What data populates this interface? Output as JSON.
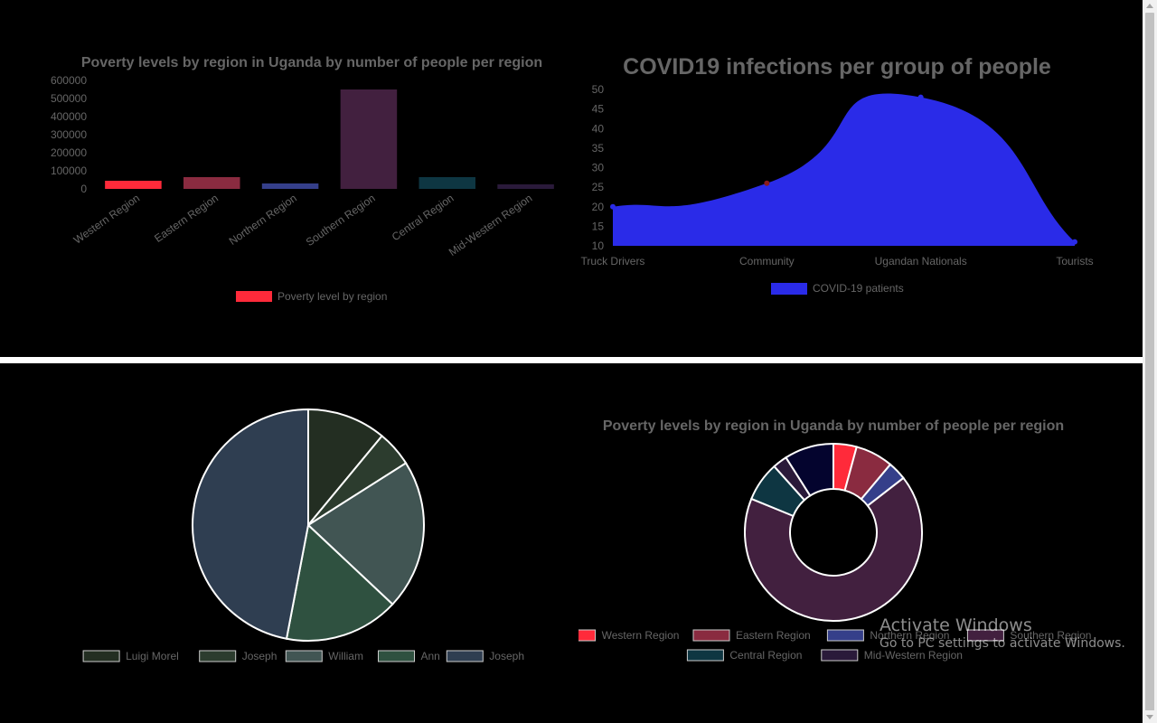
{
  "chart_data": [
    {
      "id": "bar",
      "type": "bar",
      "title": "Poverty levels by region in Uganda by number of people per region",
      "categories": [
        "Western Region",
        "Eastern Region",
        "Northern Region",
        "Southern Region",
        "Central Region",
        "Mid-Western Region"
      ],
      "series": [
        {
          "name": "Poverty level by region",
          "values": [
            45000,
            65000,
            30000,
            550000,
            65000,
            25000
          ],
          "colors": [
            "#ff2a3a",
            "#8a2b40",
            "#353f8a",
            "#42203f",
            "#0e3642",
            "#2a1a3a"
          ]
        }
      ],
      "ylim": [
        0,
        600000
      ],
      "yticks": [
        0,
        100000,
        200000,
        300000,
        400000,
        500000,
        600000
      ],
      "legend_position": "bottom",
      "legend_color": "#ff2a3a"
    },
    {
      "id": "area",
      "type": "area",
      "title": "COVID19 infections per group of people",
      "categories": [
        "Truck Drivers",
        "Community",
        "Ugandan Nationals",
        "Tourists"
      ],
      "series": [
        {
          "name": "COVID-19 patients",
          "values": [
            20,
            26,
            48,
            11
          ],
          "color": "#2a2be8"
        }
      ],
      "ylim": [
        10,
        50
      ],
      "yticks": [
        10,
        15,
        20,
        25,
        30,
        35,
        40,
        45,
        50
      ],
      "legend_position": "bottom"
    },
    {
      "id": "pie",
      "type": "pie",
      "title": "",
      "labels": [
        "Luigi Morel",
        "Joseph",
        "William",
        "Ann",
        "Joseph"
      ],
      "values": [
        11,
        5,
        21,
        16,
        47
      ],
      "colors": [
        "#232e22",
        "#2c3c2e",
        "#415553",
        "#2f5140",
        "#2f3e51"
      ],
      "legend_position": "bottom"
    },
    {
      "id": "donut",
      "type": "pie",
      "title": "Poverty levels by region in Uganda by number of people per region",
      "labels": [
        "Western Region",
        "Eastern Region",
        "Northern Region",
        "Southern Region",
        "Central Region",
        "Mid-Western Region"
      ],
      "values": [
        4,
        6.5,
        3.2,
        63,
        6.8,
        2.5
      ],
      "extra_slice": {
        "value": 8.5,
        "color": "#04042e"
      },
      "colors": [
        "#ff2a3a",
        "#8a2b40",
        "#353f8a",
        "#42203f",
        "#0e3642",
        "#2a1a3a"
      ],
      "legend_position": "bottom"
    }
  ],
  "watermark": {
    "title": "Activate Windows",
    "subtitle": "Go to PC settings to activate Windows."
  }
}
